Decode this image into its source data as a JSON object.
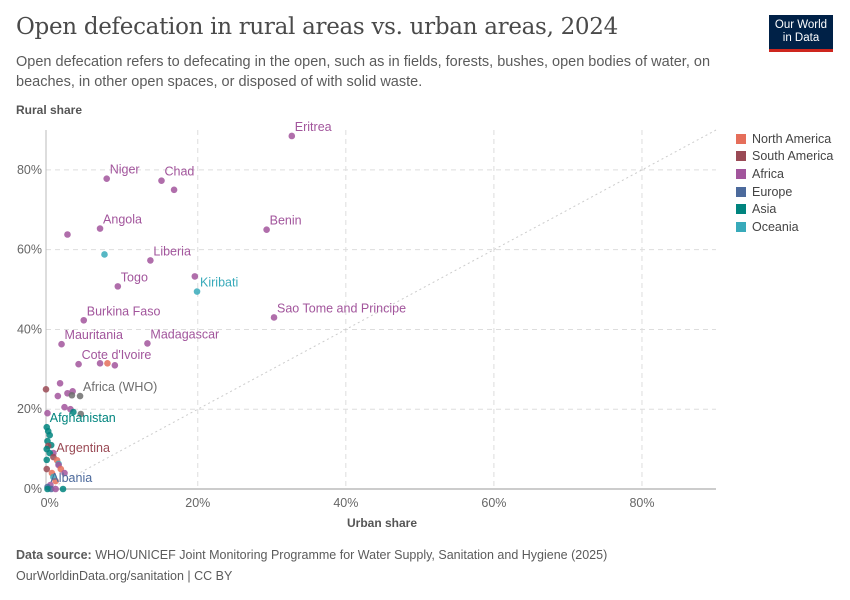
{
  "header": {
    "title": "Open defecation in rural areas vs. urban areas, 2024",
    "subtitle": "Open defecation refers to defecating in the open, such as in fields, forests, bushes, open bodies of water, on beaches, in other open spaces, or disposed of with solid waste.",
    "logo": "Our World in Data"
  },
  "footer": {
    "source_label": "Data source:",
    "source": "WHO/UNICEF Joint Monitoring Programme for Water Supply, Sanitation and Hygiene (2025)",
    "url": "OurWorldinData.org/sanitation | CC BY"
  },
  "chart_data": {
    "type": "scatter",
    "title": "Open defecation in rural areas vs. urban areas, 2024",
    "xlabel": "Urban share",
    "ylabel": "Rural share",
    "xlim": [
      -0.5,
      90
    ],
    "ylim": [
      0,
      90
    ],
    "x_ticks": [
      0,
      20,
      40,
      60,
      80
    ],
    "y_ticks": [
      0,
      20,
      40,
      60,
      80
    ],
    "tick_format": "%",
    "grid": true,
    "diagonal_reference_line": true,
    "legend_position": "right",
    "legend": [
      {
        "name": "North America",
        "color": "#e56e5a"
      },
      {
        "name": "South America",
        "color": "#9a4a55"
      },
      {
        "name": "Africa",
        "color": "#a2559c"
      },
      {
        "name": "Europe",
        "color": "#4c6a9c"
      },
      {
        "name": "Asia",
        "color": "#00847e"
      },
      {
        "name": "Oceania",
        "color": "#38aaba"
      }
    ],
    "other_color": "#6d6d6d",
    "points": [
      {
        "label": "Eritrea",
        "region": "Africa",
        "x": 32.7,
        "y": 88.5
      },
      {
        "label": "Niger",
        "region": "Africa",
        "x": 7.7,
        "y": 77.8
      },
      {
        "label": "Chad",
        "region": "Africa",
        "x": 15.1,
        "y": 77.3
      },
      {
        "region": "Africa",
        "x": 16.8,
        "y": 75
      },
      {
        "label": "Angola",
        "region": "Africa",
        "x": 6.8,
        "y": 65.3
      },
      {
        "region": "Africa",
        "x": 2.4,
        "y": 63.8
      },
      {
        "label": "Benin",
        "region": "Africa",
        "x": 29.3,
        "y": 65
      },
      {
        "region": "Oceania",
        "x": 7.4,
        "y": 58.8
      },
      {
        "label": "Liberia",
        "region": "Africa",
        "x": 13.6,
        "y": 57.3
      },
      {
        "region": "Africa",
        "x": 19.6,
        "y": 53.3
      },
      {
        "label": "Kiribati",
        "region": "Oceania",
        "x": 19.9,
        "y": 49.5
      },
      {
        "label": "Togo",
        "region": "Africa",
        "x": 9.2,
        "y": 50.8
      },
      {
        "label": "Burkina Faso",
        "region": "Africa",
        "x": 4.6,
        "y": 42.3
      },
      {
        "label": "Sao Tome and Principe",
        "region": "Africa",
        "x": 30.3,
        "y": 43
      },
      {
        "label": "Mauritania",
        "region": "Africa",
        "x": 1.6,
        "y": 36.3
      },
      {
        "label": "Madagascar",
        "region": "Africa",
        "x": 13.2,
        "y": 36.5
      },
      {
        "label": "Cote d'Ivoire",
        "region": "Africa",
        "x": 3.9,
        "y": 31.3
      },
      {
        "region": "Africa",
        "x": 6.8,
        "y": 31.5
      },
      {
        "region": "North America",
        "x": 7.8,
        "y": 31.5
      },
      {
        "region": "Africa",
        "x": 8.8,
        "y": 31
      },
      {
        "region": "Africa",
        "x": 1.4,
        "y": 26.5
      },
      {
        "region": "South America",
        "x": -0.5,
        "y": 25
      },
      {
        "region": "Africa",
        "x": 3.1,
        "y": 24.5
      },
      {
        "region": "Africa",
        "x": 2.4,
        "y": 24
      },
      {
        "region": "Africa",
        "x": 1.1,
        "y": 23.3
      },
      {
        "label": "Africa (WHO)",
        "region": "Other",
        "x": 4.1,
        "y": 23.3
      },
      {
        "region": "Other",
        "x": 3.0,
        "y": 23.5
      },
      {
        "region": "Africa",
        "x": 2,
        "y": 20.5
      },
      {
        "region": "Africa",
        "x": -0.3,
        "y": 19
      },
      {
        "region": "Africa",
        "x": 2.8,
        "y": 20
      },
      {
        "region": "Asia",
        "x": 3.2,
        "y": 19.3
      },
      {
        "region": "Other",
        "x": 4.2,
        "y": 18.8
      },
      {
        "label": "Afghanistan",
        "region": "Asia",
        "x": -0.4,
        "y": 15.5
      },
      {
        "region": "Asia",
        "x": -0.2,
        "y": 14.5
      },
      {
        "region": "Asia",
        "x": 0,
        "y": 13.5
      },
      {
        "region": "Asia",
        "x": -0.3,
        "y": 12
      },
      {
        "region": "Asia",
        "x": 0.2,
        "y": 11
      },
      {
        "region": "South America",
        "x": -0.2,
        "y": 10.8
      },
      {
        "region": "Asia",
        "x": -0.4,
        "y": 10
      },
      {
        "region": "Africa",
        "x": 0.5,
        "y": 9
      },
      {
        "region": "Asia",
        "x": 0,
        "y": 9
      },
      {
        "label": "Argentina",
        "region": "South America",
        "x": 0.5,
        "y": 8
      },
      {
        "region": "North America",
        "x": 1,
        "y": 7.2
      },
      {
        "region": "Asia",
        "x": -0.4,
        "y": 7.3
      },
      {
        "region": "Oceania",
        "x": 1.2,
        "y": 6.3
      },
      {
        "region": "Africa",
        "x": 1.2,
        "y": 6
      },
      {
        "region": "North America",
        "x": 1.5,
        "y": 5
      },
      {
        "region": "South America",
        "x": -0.4,
        "y": 5
      },
      {
        "region": "North America",
        "x": 0.3,
        "y": 4
      },
      {
        "region": "Africa",
        "x": 2,
        "y": 4
      },
      {
        "region": "Oceania",
        "x": 0.5,
        "y": 3
      },
      {
        "region": "North America",
        "x": 0.8,
        "y": 2
      },
      {
        "region": "Africa",
        "x": 0.1,
        "y": 1
      },
      {
        "label": "Albania",
        "region": "Europe",
        "x": -0.3,
        "y": 0.5
      },
      {
        "region": "Europe",
        "x": 0.2,
        "y": 0
      },
      {
        "region": "Asia",
        "x": -0.3,
        "y": 0
      },
      {
        "region": "Africa",
        "x": 0.8,
        "y": 0
      },
      {
        "region": "Asia",
        "x": 1.8,
        "y": 0
      }
    ]
  }
}
